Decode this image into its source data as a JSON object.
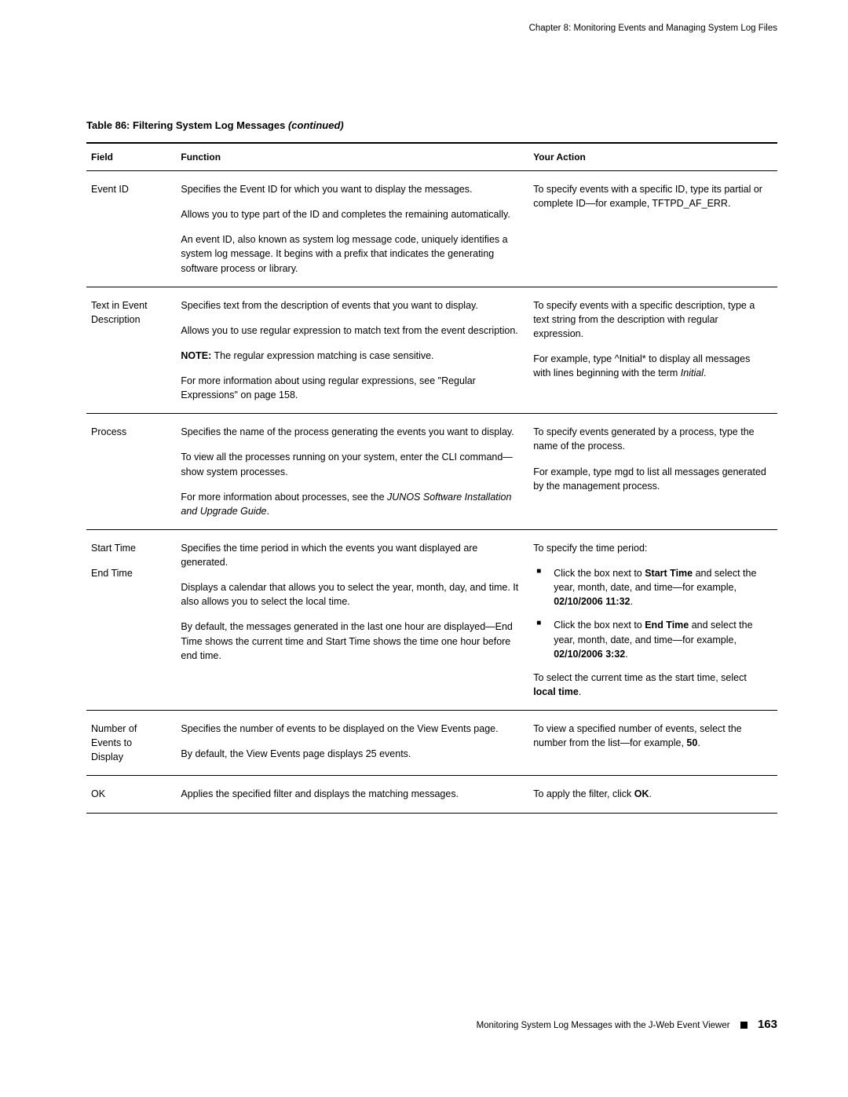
{
  "header": {
    "chapter": "Chapter 8: Monitoring Events and Managing System Log Files"
  },
  "caption": {
    "prefix": "Table 86: Filtering System Log Messages",
    "suffix": "(continued)"
  },
  "columns": {
    "field": "Field",
    "function": "Function",
    "action": "Your Action"
  },
  "rows": {
    "eventid": {
      "field": "Event ID",
      "func_p1": "Specifies the Event ID for which you want to display the messages.",
      "func_p2": "Allows you to type part of the ID and completes the remaining automatically.",
      "func_p3": "An event ID, also known as system log message code, uniquely identifies a system log message. It begins with a prefix that indicates the generating software process or library.",
      "act_a": "To specify events with a specific ID, type its partial or complete ID—for example, ",
      "act_b": "TFTPD_AF_ERR",
      "act_c": "."
    },
    "textdesc": {
      "field": "Text in Event Description",
      "func_p1": "Specifies text from the description of events that you want to display.",
      "func_p2": "Allows you to use regular expression to match text from the event description.",
      "func_note_label": "NOTE:",
      "func_note_text": " The regular expression matching is case sensitive.",
      "func_p4": "For more information about using regular expressions, see \"Regular Expressions\" on page 158.",
      "act_p1": "To specify events with a specific description, type a text string from the description with regular expression.",
      "act_p2a": "For example, type ",
      "act_p2b": "^Initial*",
      "act_p2c": " to display all messages with lines beginning with the term ",
      "act_p2d": "Initial",
      "act_p2e": "."
    },
    "process": {
      "field": "Process",
      "func_p1": "Specifies the name of the process generating the events you want to display.",
      "func_p2a": "To view all the processes running on your system, enter the CLI command—",
      "func_p2b": "show system processes",
      "func_p2c": ".",
      "func_p3a": "For more information about processes, see the ",
      "func_p3b": "JUNOS Software Installation and Upgrade Guide",
      "func_p3c": ".",
      "act_p1": "To specify events generated by a process, type the name of the process.",
      "act_p2a": "For example, type ",
      "act_p2b": "mgd",
      "act_p2c": " to list all messages generated by the management process."
    },
    "time": {
      "field1": "Start Time",
      "field2": "End Time",
      "func_p1": "Specifies the time period in which the events you want displayed are generated.",
      "func_p2": "Displays a calendar that allows you to select the year, month, day, and time. It also allows you to select the local time.",
      "func_p3": "By default, the messages generated in the last one hour are displayed—End Time shows the current time and Start Time shows the time one hour before end time.",
      "act_p1": "To specify the time period:",
      "li1a": "Click the box next to ",
      "li1b": "Start Time",
      "li1c": " and select the year, month, date, and time—for example, ",
      "li1d": "02/10/2006 11:32",
      "li1e": ".",
      "li2a": "Click the box next to ",
      "li2b": "End Time",
      "li2c": " and select the year, month, date, and time—for example, ",
      "li2d": "02/10/2006 3:32",
      "li2e": ".",
      "act_p2a": "To select the current time as the start time, select ",
      "act_p2b": "local time",
      "act_p2c": "."
    },
    "numevents": {
      "field": "Number of Events to Display",
      "func_p1": "Specifies the number of events to be displayed on the View Events page.",
      "func_p2": "By default, the View Events page displays 25 events.",
      "act_a": "To view a specified number of events, select the number from the list—for example, ",
      "act_b": "50",
      "act_c": "."
    },
    "ok": {
      "field": "OK",
      "func": "Applies the specified filter and displays the matching messages.",
      "act_a": "To apply the filter, click ",
      "act_b": "OK",
      "act_c": "."
    }
  },
  "footer": {
    "text": "Monitoring System Log Messages with the J-Web Event Viewer",
    "page": "163"
  }
}
